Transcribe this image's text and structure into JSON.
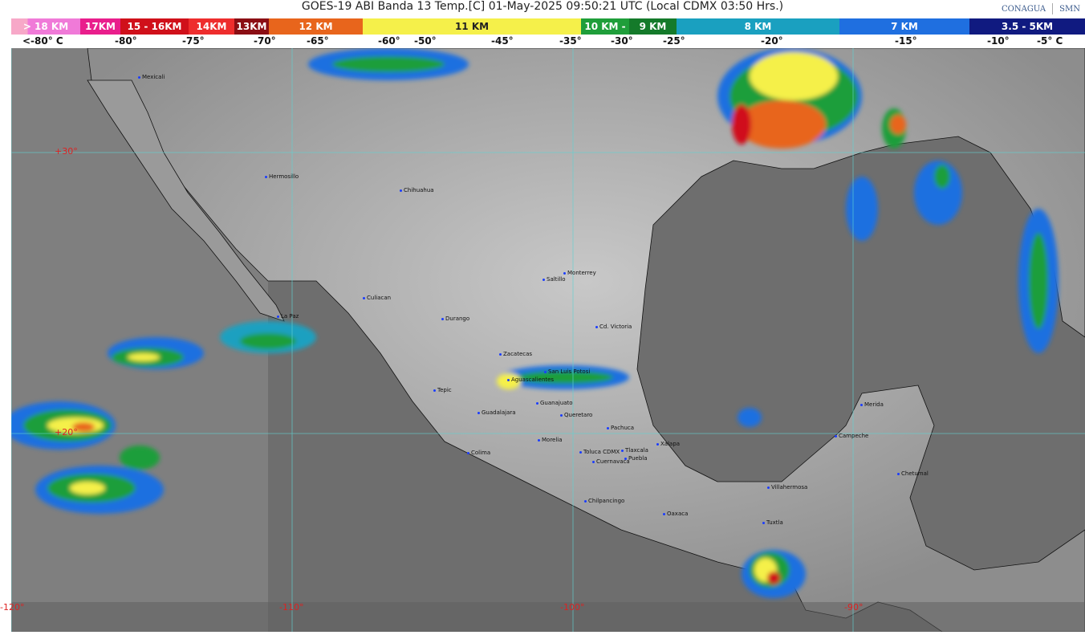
{
  "header": {
    "title": "GOES-19 ABI Banda 13 Temp.[C] 01-May-2025 09:50:21 UTC (Local CDMX  03:50 Hrs.)",
    "logos": [
      "CONAGUA",
      "SMN"
    ]
  },
  "colorbar": {
    "segments": [
      {
        "label": "> 18 KM",
        "color": "#f07ad8"
      },
      {
        "label": "17KM",
        "color": "#e91e8c"
      },
      {
        "label": "15 - 16KM",
        "color": "#d0101a"
      },
      {
        "label": "14KM",
        "color": "#ee2d2d"
      },
      {
        "label": "13KM",
        "color": "#8b0e14"
      },
      {
        "label": "12 KM",
        "color": "#e8651c"
      },
      {
        "label": "11 KM",
        "color": "#f5f04a"
      },
      {
        "label": "10 KM -",
        "color": "#1f9e3a"
      },
      {
        "label": "9 KM",
        "color": "#147a2a"
      },
      {
        "label": "8 KM",
        "color": "#1aa0c0"
      },
      {
        "label": "7 KM",
        "color": "#1f6fe0"
      },
      {
        "label": "3.5 - 5KM",
        "color": "#101a80"
      }
    ],
    "ticks": [
      "<-80° C",
      "-80°",
      "-75°",
      "-70°",
      "-65°",
      "-60°",
      "-50°",
      "-45°",
      "-35°",
      "-30°",
      "-25°",
      "-20°",
      "-15°",
      "-10°",
      "-5°  C"
    ]
  },
  "grid": {
    "lat_labels": [
      "+30°",
      "+20°"
    ],
    "lon_labels": [
      "-120°",
      "-110°",
      "-100°",
      "-90°"
    ]
  },
  "cities": [
    "Mexicali",
    "La Paz",
    "Hermosillo",
    "Chihuahua",
    "Culiacan",
    "Durango",
    "Saltillo",
    "Monterrey",
    "Cd. Victoria",
    "Zacatecas",
    "San Luis Potosi",
    "Aguascalientes",
    "Tepic",
    "Guanajuato",
    "Guadalajara",
    "Queretaro",
    "Pachuca",
    "Xalapa",
    "Morelia",
    "Colima",
    "Toluca CDMX",
    "Tlaxcala",
    "Puebla",
    "Cuernavaca",
    "Chilpancingo",
    "Oaxaca",
    "Villahermosa",
    "Tuxtla",
    "Merida",
    "Campeche",
    "Chetumal"
  ]
}
